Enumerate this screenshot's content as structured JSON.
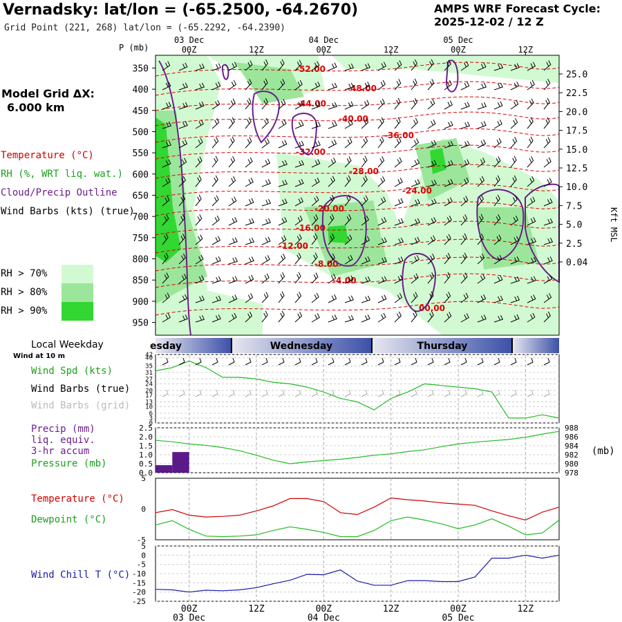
{
  "header": {
    "title": "Vernadsky:  lat/lon = (-65.2500, -64.2670)",
    "subtitle": "Grid Point (221, 268) lat/lon = (-65.2292, -64.2390)",
    "cycle_line1": "AMPS WRF Forecast Cycle:",
    "cycle_line2": "2025-12-02 / 12  Z"
  },
  "model": {
    "line1": "Model Grid ΔX:",
    "line2": "6.000 km"
  },
  "legend": {
    "temperature": "Temperature (°C)",
    "rh": "RH (%, WRT liq. wat.)",
    "cloud": "Cloud/Precip Outline",
    "wind": "Wind Barbs (kts) (true)",
    "rh70": "RH > 70%",
    "rh80": "RH > 80%",
    "rh90": "RH > 90%"
  },
  "colors": {
    "rh70": "#d2fad2",
    "rh80": "#9be69b",
    "rh90": "#32d732",
    "temp": "#dd0000",
    "cloud": "#6a1e8c",
    "dew": "#22bb22",
    "chill": "#1a1aaa",
    "precip": "#5a1a8a"
  },
  "chart_data": [
    {
      "type": "heatmap",
      "title": "Time-height cross section",
      "ylabel_left": "P (mb)",
      "ylabel_right": "Kft MSL",
      "pressure_ticks": [
        350,
        400,
        450,
        500,
        550,
        600,
        650,
        700,
        750,
        800,
        850,
        900,
        950
      ],
      "height_ticks": [
        "25.0",
        "22.5",
        "20.0",
        "17.5",
        "15.0",
        "12.5",
        "10.0",
        "7.5",
        "5.0",
        "2.5",
        "0.04"
      ],
      "time_ticks_top": [
        "00Z",
        "12Z",
        "00Z",
        "12Z",
        "00Z",
        "12Z"
      ],
      "date_ticks_top": [
        "03 Dec",
        "04 Dec",
        "05 Dec"
      ],
      "pressure_label": "P (mb)",
      "height_label": "Kft MSL",
      "temperature_labels": [
        "-52.00",
        "-48.00",
        "-44.00",
        "-40.00",
        "-36.00",
        "-32.00",
        "-28.00",
        "-24.00",
        "-20.00",
        "-16.00",
        "-12.00",
        "-8.00",
        "-4.00",
        "00.00"
      ]
    },
    {
      "type": "line",
      "title": "Wind Spd (kts)",
      "yticks": [
        "42",
        "40",
        "35",
        "31",
        "27",
        "24",
        "20",
        "17",
        "13",
        "10",
        "6",
        "3",
        "0"
      ],
      "hours": [
        0,
        3,
        6,
        9,
        12,
        15,
        18,
        21,
        24,
        27,
        30,
        33,
        36,
        39,
        42,
        45,
        48,
        51,
        54,
        57,
        60,
        63,
        66,
        69,
        72
      ],
      "values": [
        32,
        34,
        38,
        34,
        28,
        28,
        27,
        25,
        24,
        22,
        19,
        15,
        13,
        8,
        15,
        19,
        24,
        23,
        22,
        21,
        19,
        3,
        3,
        5,
        3
      ]
    },
    {
      "type": "bar",
      "title": "Precip (mm) liq. equiv. 3-hr accum",
      "yticks_left": [
        "2.5",
        "2.0",
        "1.5",
        "1.0",
        "0.5",
        "0.0"
      ],
      "bars": [
        {
          "start": 0,
          "end": 3,
          "value": 0.42
        },
        {
          "start": 3,
          "end": 6,
          "value": 1.15
        }
      ]
    },
    {
      "type": "line",
      "title": "Pressure (mb)",
      "yticks_right": [
        "988",
        "986",
        "984",
        "982",
        "980",
        "978"
      ],
      "hours": [
        0,
        3,
        6,
        9,
        12,
        15,
        18,
        21,
        24,
        27,
        30,
        33,
        36,
        39,
        42,
        45,
        48,
        51,
        54,
        57,
        60,
        63,
        66,
        69,
        72
      ],
      "values": [
        985.2,
        984.9,
        984.4,
        984.1,
        983.6,
        982.9,
        981.9,
        980.8,
        980.0,
        980.4,
        980.7,
        981.0,
        981.4,
        981.9,
        982.2,
        982.7,
        983.1,
        983.8,
        984.4,
        984.8,
        985.1,
        985.4,
        985.9,
        986.6,
        987.2
      ]
    },
    {
      "type": "line",
      "title": "Temperature / Dewpoint (°C)",
      "yticks": [
        "5",
        "0",
        "-5"
      ],
      "hours": [
        0,
        3,
        6,
        9,
        12,
        15,
        18,
        21,
        24,
        27,
        30,
        33,
        36,
        39,
        42,
        45,
        48,
        51,
        54,
        57,
        60,
        63,
        66,
        69,
        72
      ],
      "series": [
        {
          "name": "Temperature (°C)",
          "values": [
            -0.6,
            -0.1,
            -1.0,
            -1.3,
            -1.2,
            -1.0,
            -0.3,
            0.5,
            1.7,
            1.7,
            1.2,
            -0.6,
            -0.9,
            0.3,
            1.8,
            1.5,
            1.3,
            1.0,
            0.8,
            0.6,
            -0.3,
            -1.1,
            -1.8,
            -0.5,
            0.3
          ]
        },
        {
          "name": "Dewpoint (°C)",
          "values": [
            -2.6,
            -1.9,
            -3.3,
            -4.4,
            -4.5,
            -4.4,
            -4.2,
            -3.5,
            -2.9,
            -3.3,
            -3.8,
            -4.5,
            -4.5,
            -3.5,
            -1.9,
            -1.3,
            -1.8,
            -2.4,
            -3.2,
            -2.6,
            -1.6,
            -2.8,
            -4.2,
            -3.9,
            -1.8
          ]
        }
      ]
    },
    {
      "type": "line",
      "title": "Wind Chill T (°C)",
      "yticks": [
        "5",
        "0",
        "-5",
        "-10",
        "-15",
        "-20",
        "-25"
      ],
      "hours": [
        0,
        3,
        6,
        9,
        12,
        15,
        18,
        21,
        24,
        27,
        30,
        33,
        36,
        39,
        42,
        45,
        48,
        51,
        54,
        57,
        60,
        63,
        66,
        69,
        72
      ],
      "values": [
        -18.5,
        -18.8,
        -20.0,
        -19.0,
        -19.3,
        -18.8,
        -17.6,
        -15.5,
        -13.6,
        -10.4,
        -10.6,
        -8.0,
        -14.0,
        -16.3,
        -16.3,
        -13.8,
        -13.8,
        -14.3,
        -14.3,
        -11.8,
        -1.6,
        -1.6,
        0.0,
        -1.6,
        0.0
      ]
    }
  ],
  "panels": {
    "weekday_label": "Local Weekday",
    "wind_at": "Wind at 10 m",
    "days": [
      "esday",
      "Wednesday",
      "Thursday"
    ],
    "wind_spd": "Wind Spd (kts)",
    "wind_barbs_true": "Wind Barbs (true)",
    "wind_barbs_grid": "Wind Barbs (grid)",
    "precip1": "Precip (mm)",
    "precip2": "liq. equiv.",
    "precip3": "3-hr accum",
    "pressure": "Pressure (mb)",
    "pressure_unit": "(mb)",
    "temperature": "Temperature (°C)",
    "dewpoint": "Dewpoint (°C)",
    "windchill": "Wind Chill T (°C)",
    "bottom_times": [
      "00Z",
      "12Z",
      "00Z",
      "12Z",
      "00Z",
      "12Z"
    ],
    "bottom_dates": [
      "03 Dec",
      "04 Dec",
      "05 Dec"
    ]
  }
}
